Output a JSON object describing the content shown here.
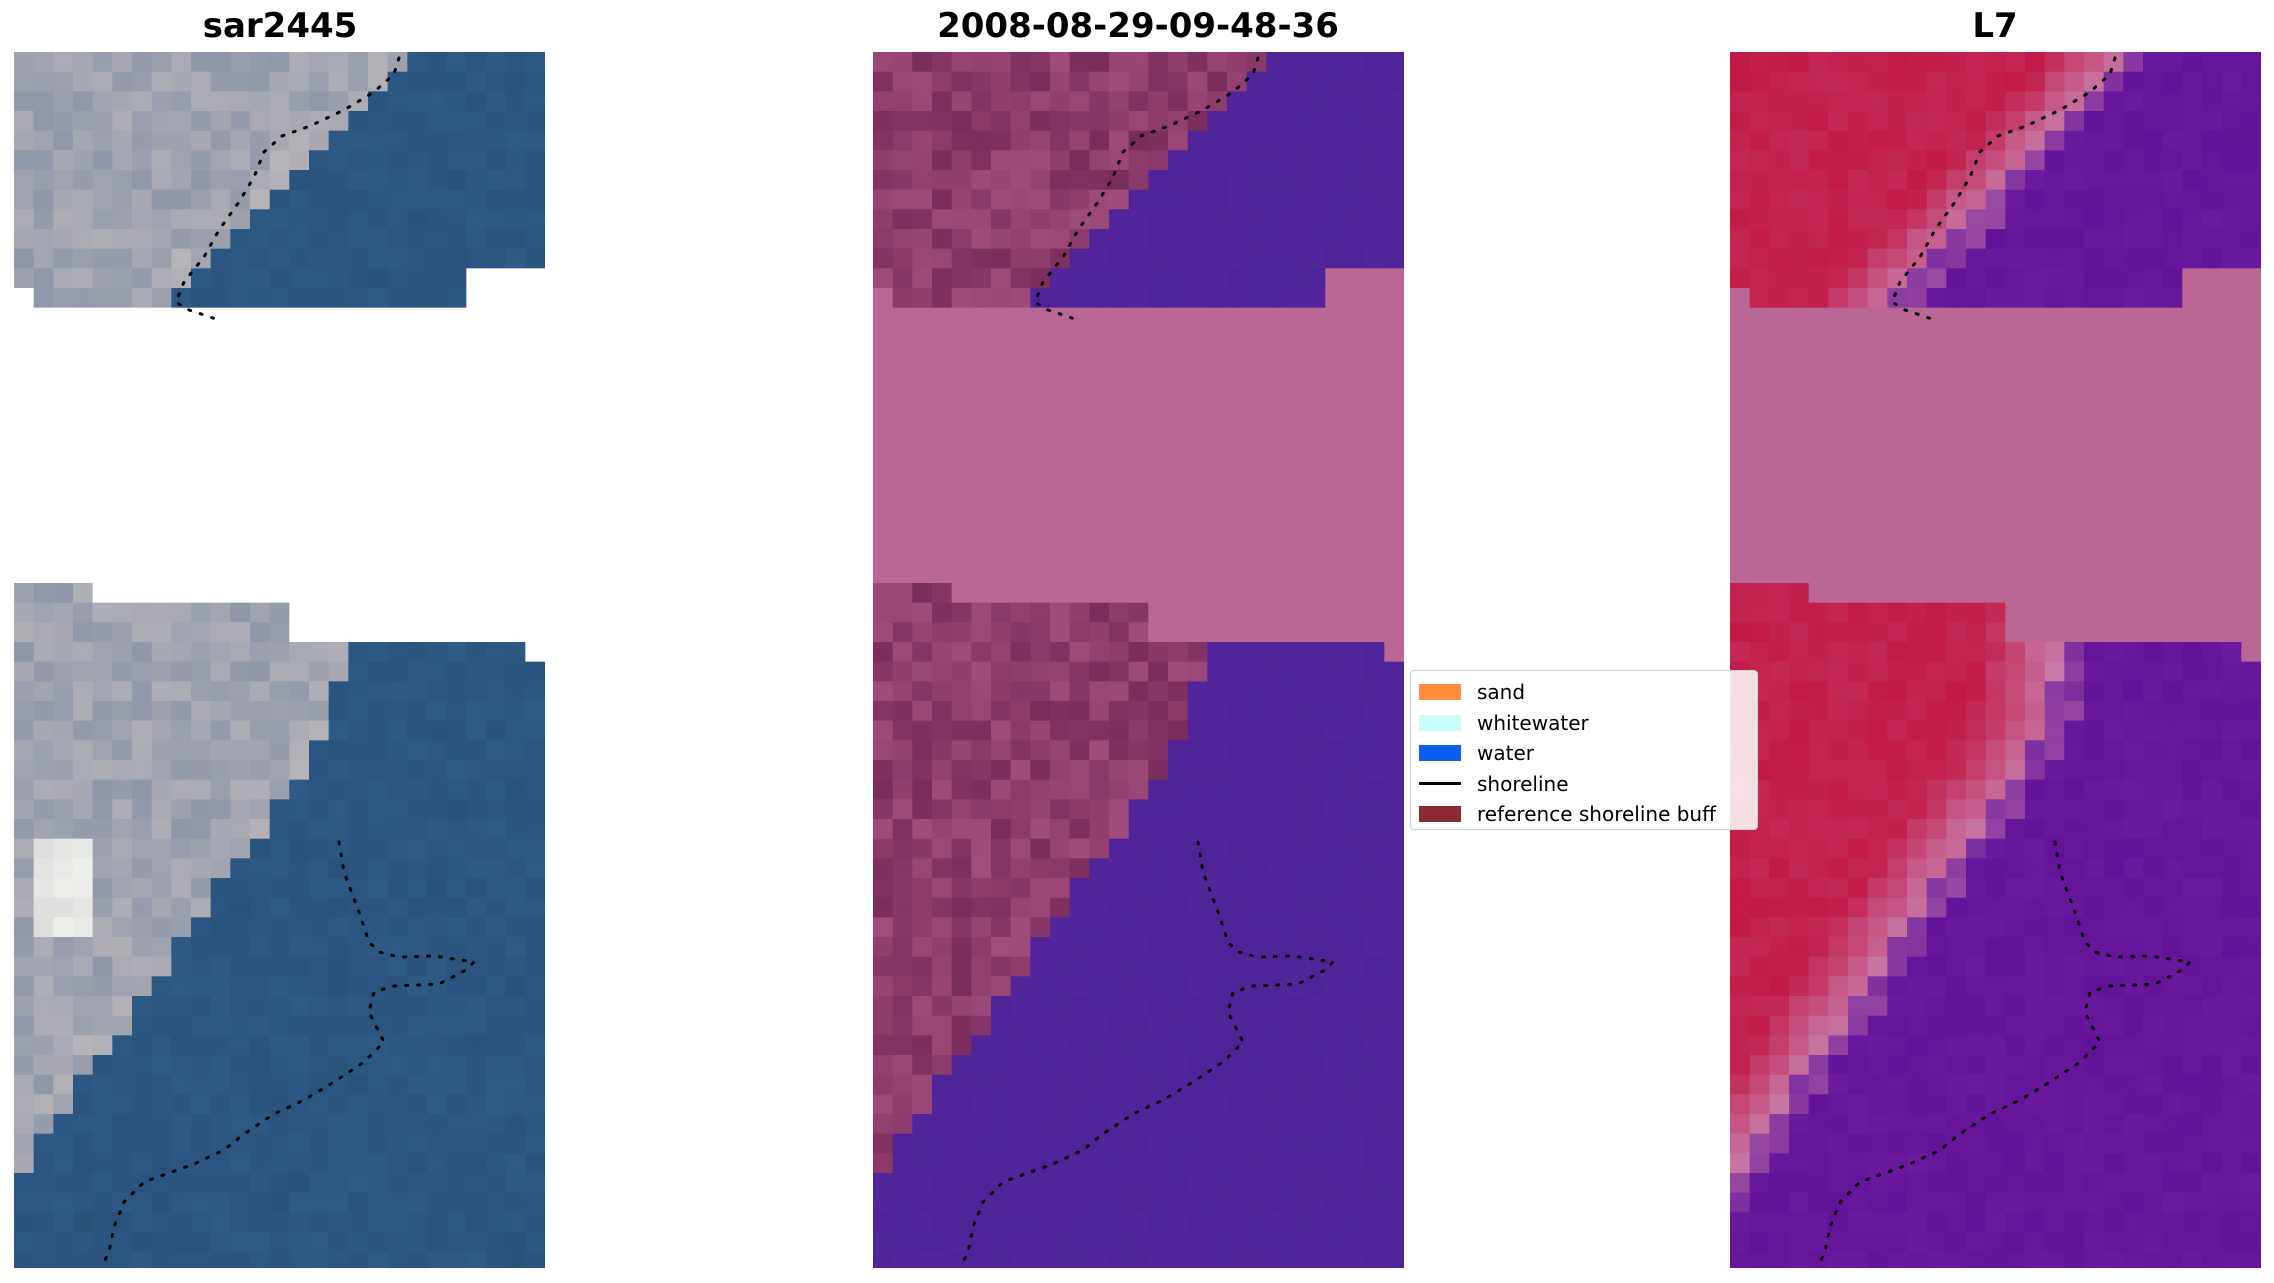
{
  "panels": [
    {
      "title": "sar2445",
      "style": "rgb",
      "colors": {
        "land_light": "#b7b4b9",
        "land_mid": "#8e96a8",
        "land_dark": "#6f7e97",
        "water": "#2e5a86",
        "water_dark": "#284f78",
        "highlight": "#eef0ec",
        "gap": "#ffffff"
      }
    },
    {
      "title": "2008-08-29-09-48-36",
      "style": "classified",
      "colors": {
        "land_light": "#b05a8a",
        "land_mid": "#8a3c6a",
        "land_dark": "#7a2c5c",
        "water": "#53249a",
        "water_dark": "#4e2294",
        "highlight": "#c06a9a",
        "gap": "#bb6796"
      }
    },
    {
      "title": "L7",
      "style": "index",
      "colors": {
        "land_light": "#c84a70",
        "land_mid": "#c21a48",
        "land_dark": "#b81040",
        "water": "#6a1a9c",
        "water_dark": "#5c0e96",
        "highlight": "#c87aa8",
        "gap": "#bb6796"
      }
    }
  ],
  "legend": {
    "items": [
      {
        "label": "sand",
        "kind": "patch",
        "color": "#ff8c3a"
      },
      {
        "label": "whitewater",
        "kind": "patch",
        "color": "#c8fcff"
      },
      {
        "label": "water",
        "kind": "patch",
        "color": "#0a5ff0"
      },
      {
        "label": "shoreline",
        "kind": "line",
        "color": "#000000"
      },
      {
        "label": "reference shoreline buff",
        "kind": "patch",
        "color": "#8c2a32"
      }
    ]
  }
}
